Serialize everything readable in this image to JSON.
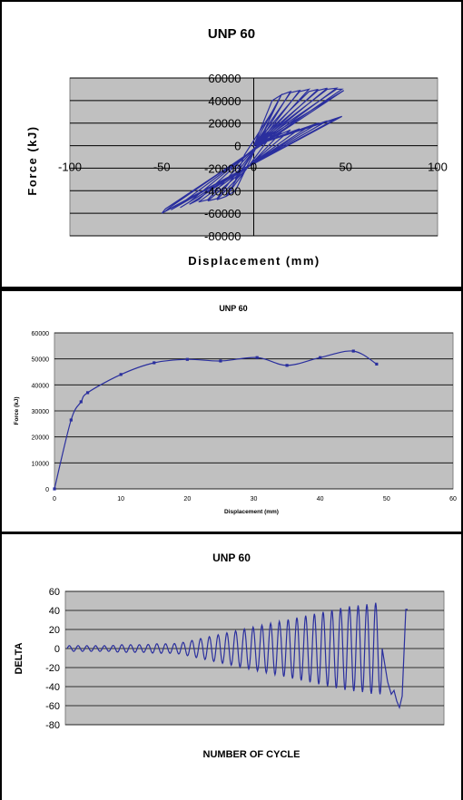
{
  "chart_data": [
    {
      "type": "line",
      "title": "UNP 60",
      "xlabel": "Displacement (mm)",
      "ylabel": "Force (kJ)",
      "xlim": [
        -100,
        100
      ],
      "ylim": [
        -80000,
        60000
      ],
      "x_ticks": [
        "-100",
        "-50",
        "0",
        "50",
        "100"
      ],
      "y_ticks": [
        "60000",
        "40000",
        "20000",
        "0",
        "-20000",
        "-40000",
        "-60000",
        "-80000"
      ],
      "grid": true,
      "series_color": "#2a2f9e",
      "plot_bg": "#c0c0c0",
      "series": [
        {
          "x": [
            0,
            5,
            10,
            -5,
            -10,
            5,
            0,
            10,
            15,
            -10,
            -15,
            10,
            0,
            15,
            20,
            -15,
            -20,
            15,
            0,
            20,
            25,
            -20,
            -25,
            20,
            0,
            25,
            30,
            -25,
            -30,
            25,
            0,
            30,
            35,
            -30,
            -35,
            30,
            0,
            35,
            40,
            -35,
            -40,
            35,
            0,
            40,
            45,
            -40,
            -45,
            40,
            0,
            45,
            48,
            -45,
            -48,
            45,
            0,
            48,
            49,
            -48,
            -50,
            48,
            0,
            48
          ],
          "y": [
            0,
            8000,
            30000,
            -8000,
            -30000,
            8000,
            0,
            40000,
            45000,
            -40000,
            -45000,
            10000,
            0,
            45000,
            48000,
            -45000,
            -48000,
            12000,
            0,
            47000,
            49000,
            -47000,
            -49000,
            14000,
            0,
            48000,
            50000,
            -48000,
            -50000,
            15000,
            0,
            48000,
            50000,
            -48000,
            -52000,
            17000,
            0,
            49000,
            51000,
            -50000,
            -55000,
            20000,
            0,
            50000,
            51000,
            -52000,
            -57000,
            22000,
            0,
            50000,
            50000,
            -54000,
            -58000,
            24000,
            0,
            48000,
            49000,
            -56000,
            -60000,
            26000,
            0,
            48000
          ]
        }
      ]
    },
    {
      "type": "line",
      "title": "UNP 60",
      "xlabel": "Displacement (mm)",
      "ylabel": "Force (kJ)",
      "xlim": [
        0,
        60
      ],
      "ylim": [
        0,
        60000
      ],
      "x_ticks": [
        "0",
        "10",
        "20",
        "30",
        "40",
        "50",
        "60"
      ],
      "y_ticks": [
        "60000",
        "50000",
        "40000",
        "30000",
        "20000",
        "10000",
        "0"
      ],
      "grid": true,
      "series_color": "#2a2f9e",
      "plot_bg": "#c0c0c0",
      "series": [
        {
          "x": [
            0,
            2.5,
            4,
            5,
            10,
            15,
            20,
            25,
            30.5,
            35,
            40,
            45,
            48.5
          ],
          "y": [
            0,
            26500,
            33500,
            37000,
            44000,
            48500,
            49800,
            49200,
            50500,
            47500,
            50500,
            53000,
            48000
          ]
        }
      ]
    },
    {
      "type": "line",
      "title": "UNP 60",
      "xlabel": "NUMBER OF CYCLE",
      "ylabel": "DELTA",
      "ylim": [
        -80,
        60
      ],
      "y_ticks": [
        "60",
        "40",
        "20",
        "0",
        "-20",
        "-40",
        "-60",
        "-80"
      ],
      "grid": true,
      "series_color": "#2a2f9e",
      "plot_bg": "#c0c0c0",
      "cycle_amplitudes": [
        3,
        3,
        3,
        3,
        3,
        3,
        4,
        4,
        4,
        4,
        5,
        5,
        5,
        6,
        8,
        10,
        12,
        14,
        16,
        18,
        20,
        22,
        24,
        26,
        28,
        30,
        32,
        34,
        36,
        38,
        40,
        42,
        44,
        45,
        46,
        48
      ],
      "final_drop": -62,
      "final_peak": 41
    }
  ]
}
